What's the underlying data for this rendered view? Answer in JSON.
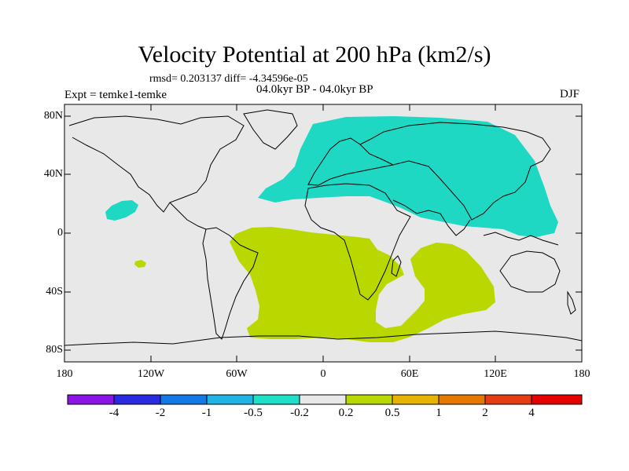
{
  "title": "Velocity Potential at 200 hPa (km2/s)",
  "stats": "rmsd= 0.203137 diff= -4.34596e-05",
  "experiment": "Expt = temke1-temke",
  "period": "04.0kyr BP - 04.0kyr BP",
  "season": "DJF",
  "axes": {
    "lat_labels": [
      "80N",
      "40N",
      "0",
      "40S",
      "80S"
    ],
    "lon_labels": [
      "180",
      "120W",
      "60W",
      "0",
      "60E",
      "120E",
      "180"
    ]
  },
  "colorbar": {
    "labels": [
      "-4",
      "-2",
      "-1",
      "-0.5",
      "-0.2",
      "0.2",
      "0.5",
      "1",
      "2",
      "4"
    ],
    "colors": [
      "#8c14e6",
      "#2a2ae0",
      "#1478e6",
      "#1eb4e6",
      "#1ee0c8",
      "#e8e8e8",
      "#b8d800",
      "#e6b400",
      "#e67800",
      "#e63c14",
      "#e60000"
    ]
  },
  "colors": {
    "ocean": "#e8e8e8",
    "negative_region": "#1ed8c4",
    "positive_region": "#bad800"
  }
}
